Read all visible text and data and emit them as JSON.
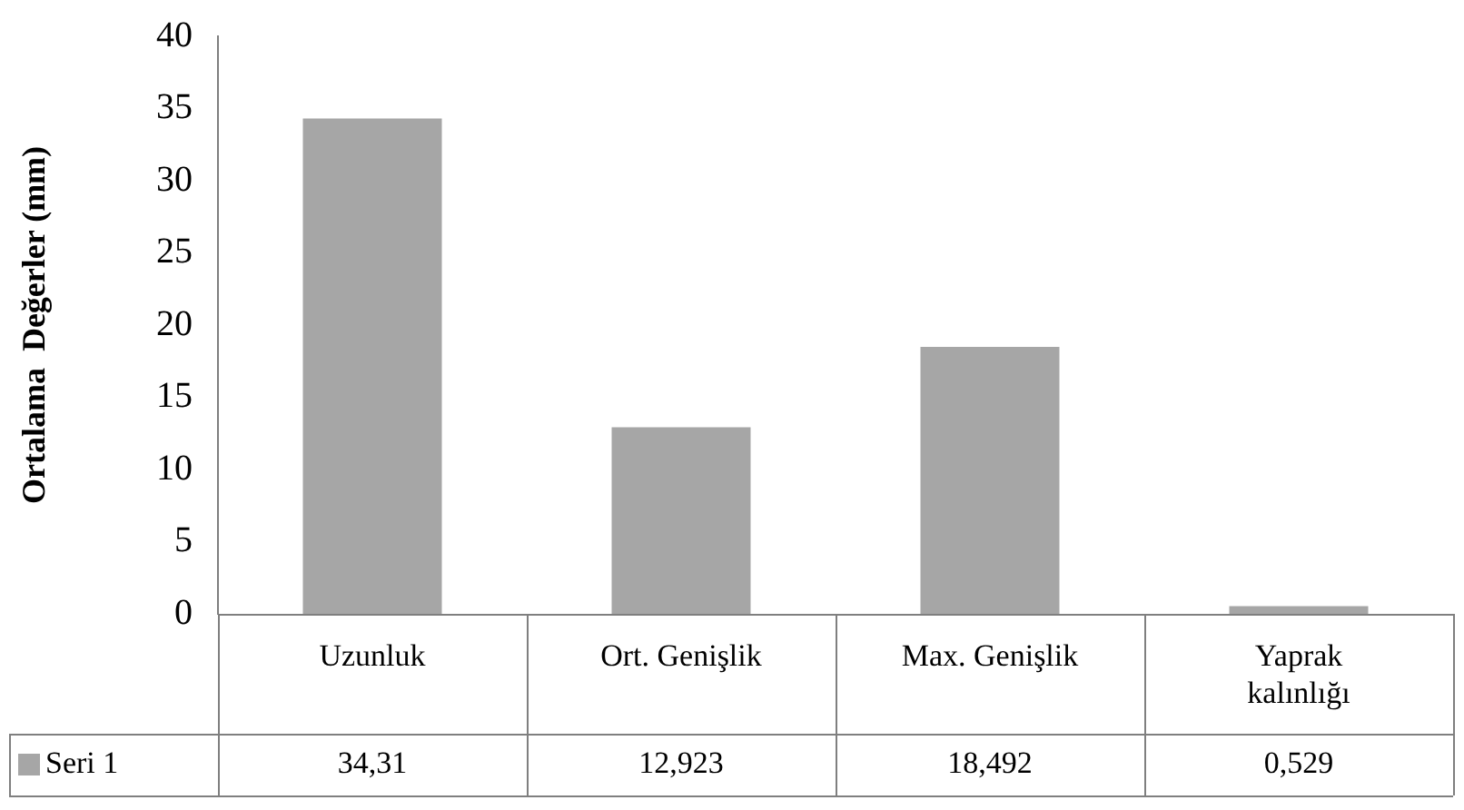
{
  "chart_data": {
    "type": "bar",
    "ylabel": "Ortalama  Değerler (mm)",
    "categories": [
      "Uzunluk",
      "Ort. Genişlik",
      "Max. Genişlik",
      "Yaprak kalınlığı"
    ],
    "series": [
      {
        "name": "Seri 1",
        "color": "#a6a6a6",
        "values": [
          34.31,
          12.923,
          18.492,
          0.529
        ],
        "value_labels": [
          "34,31",
          "12,923",
          "18,492",
          "0,529"
        ]
      }
    ],
    "ylim": [
      0,
      40
    ],
    "yticks": [
      0,
      5,
      10,
      15,
      20,
      25,
      30,
      35,
      40
    ],
    "grid": false,
    "legend": "bottom",
    "data_labels": true
  }
}
